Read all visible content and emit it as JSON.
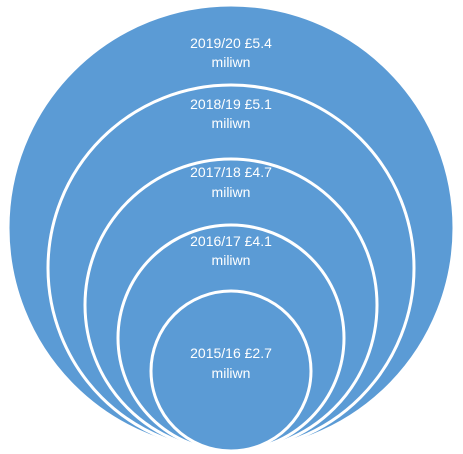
{
  "diagram": {
    "type": "nested-circles",
    "fill_color": "#5b9bd5",
    "outline_color": "#ffffff",
    "text_color": "#ffffff",
    "rings": [
      {
        "period": "2019/20",
        "amount": "£5.4",
        "unit": "miliwn"
      },
      {
        "period": "2018/19",
        "amount": "£5.1",
        "unit": "miliwn"
      },
      {
        "period": "2017/18",
        "amount": "£4.7",
        "unit": "miliwn"
      },
      {
        "period": "2016/17",
        "amount": "£4.1",
        "unit": "miliwn"
      },
      {
        "period": "2015/16",
        "amount": "£2.7",
        "unit": "miliwn"
      }
    ]
  }
}
